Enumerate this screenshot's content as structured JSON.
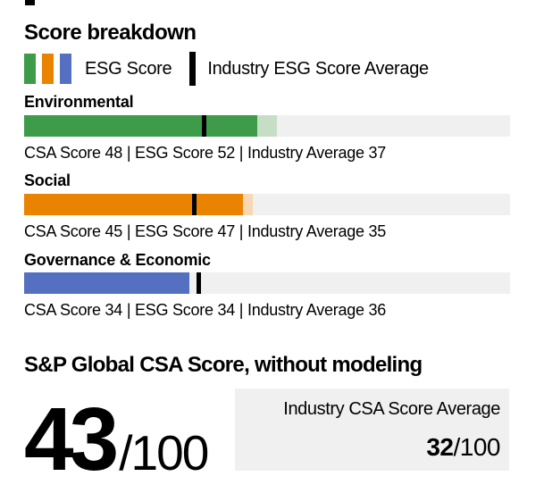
{
  "header": {
    "title": "Score breakdown"
  },
  "legend": {
    "esg_label": "ESG Score",
    "industry_label": "Industry ESG Score Average",
    "swatch_colors": [
      "#3d9b4a",
      "#ea8400",
      "#5670c1"
    ],
    "marker_color": "#000000"
  },
  "chart_data": {
    "type": "bar",
    "scale_max": 100,
    "categories": [
      "Environmental",
      "Social",
      "Governance & Economic"
    ],
    "series": [
      {
        "name": "CSA Score",
        "values": [
          48,
          45,
          34
        ]
      },
      {
        "name": "ESG Score",
        "values": [
          52,
          47,
          34
        ]
      },
      {
        "name": "Industry Average",
        "values": [
          37,
          35,
          36
        ]
      }
    ],
    "bar_colors": [
      "#3d9b4a",
      "#ea8400",
      "#5670c1"
    ],
    "bar_light_colors": [
      "#c6dec6",
      "#f7d8b2",
      "#bcc6e8"
    ],
    "track_color": "#f0f0f0",
    "marker_color": "#000000",
    "sections": [
      {
        "label": "Environmental",
        "detail": "CSA Score 48 | ESG Score 52 | Industry Average 37",
        "csa": 48,
        "esg": 52,
        "industry_avg": 37
      },
      {
        "label": "Social",
        "detail": "CSA Score 45 | ESG Score 47 | Industry Average 35",
        "csa": 45,
        "esg": 47,
        "industry_avg": 35
      },
      {
        "label": "Governance & Economic",
        "detail": "CSA Score 34 | ESG Score 34 | Industry Average 36",
        "csa": 34,
        "esg": 34,
        "industry_avg": 36
      }
    ]
  },
  "csa_score": {
    "title": "S&P Global CSA Score, without modeling",
    "score": "43",
    "denominator": "/100",
    "industry_box": {
      "label": "Industry CSA Score Average",
      "score": "32",
      "denominator": "/100",
      "background": "#f0f0f0"
    }
  }
}
